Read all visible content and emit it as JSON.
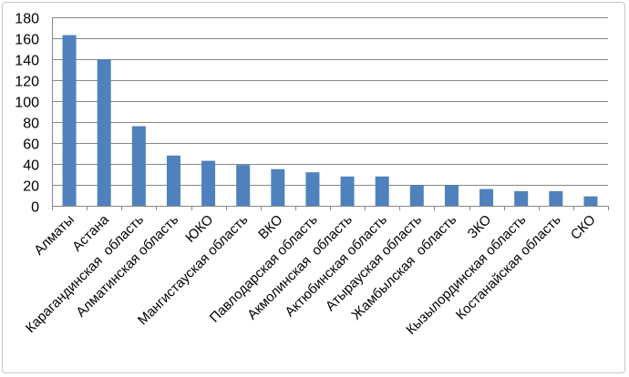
{
  "chart_data": {
    "type": "bar",
    "categories": [
      "Алматы",
      "Астана",
      "Карагандинская  область",
      "Алматинская область",
      "ЮКО",
      "Мангистауская область",
      "ВКО",
      "Павлодарская область",
      "Акмолинская  область",
      "Актюбинская область",
      "Атырауская область",
      "Жамбылская  область",
      "ЗКО",
      "Кызылординская область",
      "Костанайская область",
      "СКО"
    ],
    "values": [
      163,
      140,
      76,
      48,
      43,
      39,
      35,
      32,
      28,
      28,
      20,
      20,
      16,
      14,
      14,
      9
    ],
    "title": "",
    "xlabel": "",
    "ylabel": "",
    "ylim": [
      0,
      180
    ],
    "yticks": [
      0,
      20,
      40,
      60,
      80,
      100,
      120,
      140,
      160,
      180
    ],
    "grid": true,
    "legend": "none",
    "colors": {
      "bar": "#4f81bd",
      "grid": "#888888",
      "axis": "#888888"
    }
  }
}
